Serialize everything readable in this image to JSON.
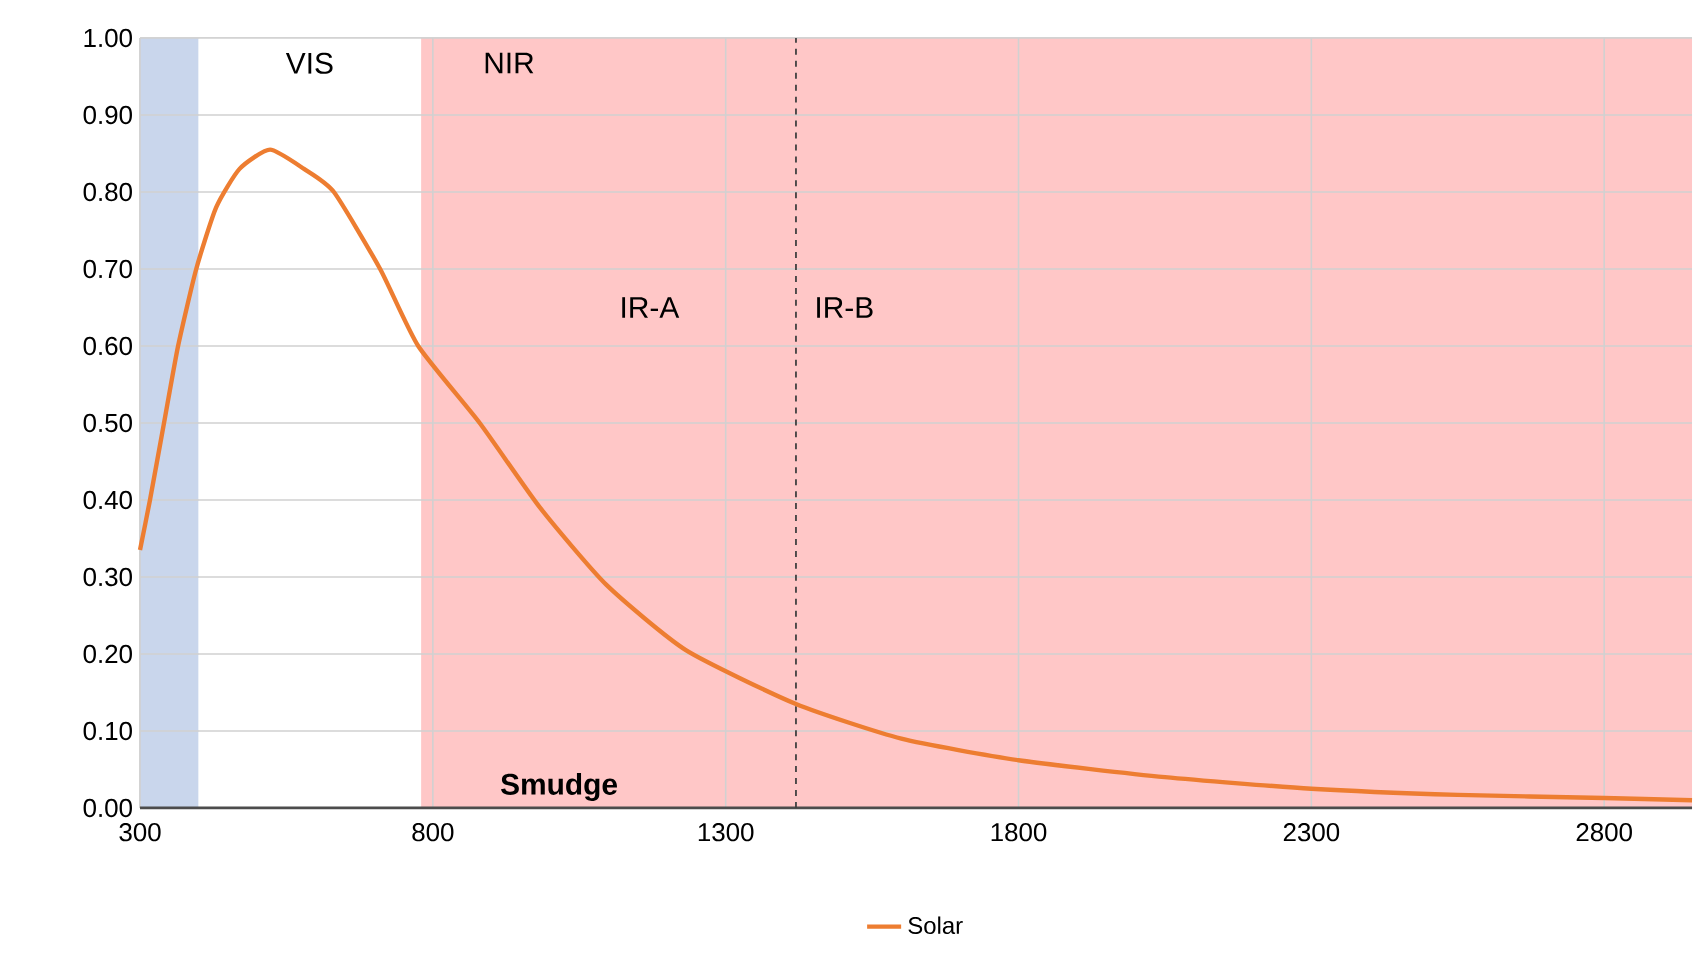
{
  "chart_data": {
    "type": "line",
    "x": [
      300,
      317,
      341,
      365,
      396,
      430,
      470,
      522,
      580,
      631,
      710,
      775,
      880,
      983,
      1096,
      1232,
      1420,
      1600,
      1800,
      2050,
      2300,
      2550,
      2800,
      2950
    ],
    "series": [
      {
        "name": "Solar",
        "color": "#ed7d31",
        "values": [
          0.335,
          0.4,
          0.5,
          0.6,
          0.7,
          0.78,
          0.83,
          0.855,
          0.83,
          0.8,
          0.7,
          0.6,
          0.5,
          0.39,
          0.29,
          0.205,
          0.135,
          0.09,
          0.062,
          0.04,
          0.025,
          0.017,
          0.013,
          0.01
        ]
      }
    ],
    "xlim": [
      300,
      2950
    ],
    "ylim": [
      0,
      1
    ],
    "xticks": [
      300,
      800,
      1300,
      1800,
      2300,
      2800
    ],
    "yticks": [
      {
        "value": 0,
        "label": "0.00"
      },
      {
        "value": 0.1,
        "label": "0.10"
      },
      {
        "value": 0.2,
        "label": "0.20"
      },
      {
        "value": 0.3,
        "label": "0.30"
      },
      {
        "value": 0.4,
        "label": "0.40"
      },
      {
        "value": 0.5,
        "label": "0.50"
      },
      {
        "value": 0.6,
        "label": "0.60"
      },
      {
        "value": 0.7,
        "label": "0.70"
      },
      {
        "value": 0.8,
        "label": "0.80"
      },
      {
        "value": 0.9,
        "label": "0.90"
      },
      {
        "value": 1,
        "label": "1.00"
      }
    ],
    "bands": [
      {
        "axis": "x",
        "from": 300,
        "to": 400,
        "color": "#c9d6ec"
      },
      {
        "axis": "x",
        "from": 400,
        "to": 780,
        "label": "VIS",
        "color": "#ffffff"
      },
      {
        "axis": "x",
        "from": 780,
        "to": 2950,
        "label": "NIR",
        "color": "#ffc7c7"
      }
    ],
    "ref_lines": [
      {
        "axis": "x",
        "value": 1420,
        "color": "#404040",
        "line_style": "dashed"
      }
    ],
    "annotations": [
      "IR-A",
      "IR-B",
      "**Smudge**"
    ],
    "grid": true,
    "legend": "bottom",
    "marker": "none",
    "line_style": "solid"
  }
}
